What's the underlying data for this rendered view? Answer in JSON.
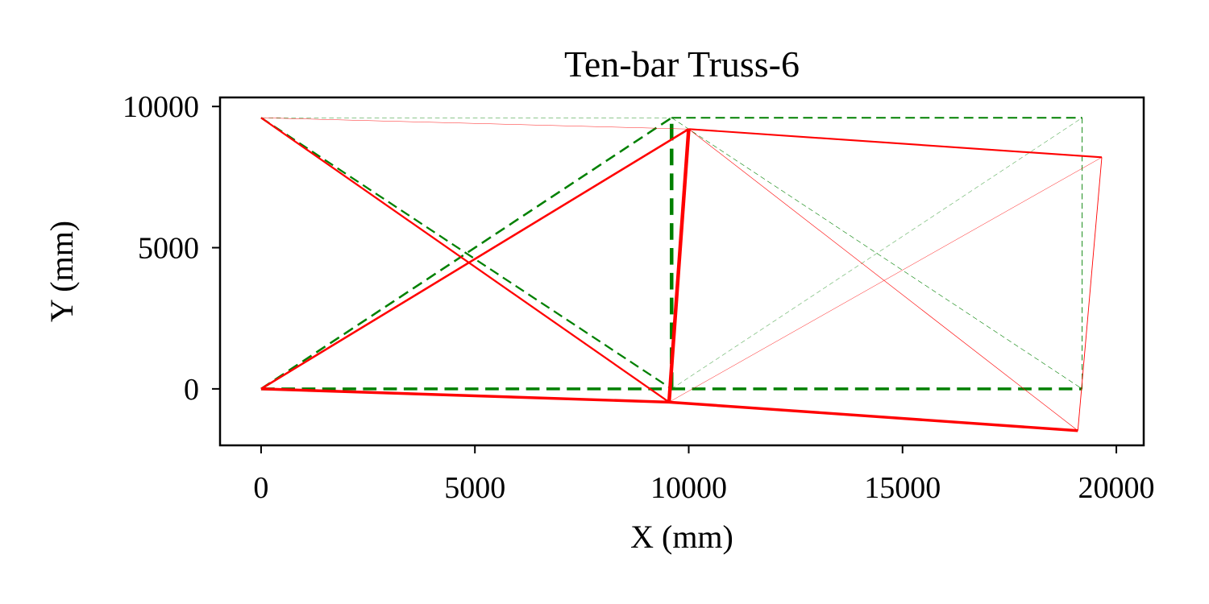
{
  "chart_data": {
    "type": "line",
    "title": "Ten-bar Truss-6",
    "xlabel": "X (mm)",
    "ylabel": "Y (mm)",
    "xlim": [
      -960,
      20640
    ],
    "ylim": [
      -2000,
      10320
    ],
    "xticks": [
      0,
      5000,
      10000,
      15000,
      20000
    ],
    "yticks": [
      0,
      5000,
      10000
    ],
    "xtick_labels": [
      "0",
      "5000",
      "10000",
      "15000",
      "20000"
    ],
    "ytick_labels": [
      "0",
      "5000",
      "10000"
    ],
    "grid": false,
    "legend": "none",
    "series": [
      {
        "style": "dashed",
        "color": "#008000",
        "nodes": [
          [
            0,
            0
          ],
          [
            0,
            9600
          ],
          [
            9600,
            0
          ],
          [
            9600,
            9600
          ],
          [
            19200,
            0
          ],
          [
            19200,
            9600
          ]
        ],
        "members": [
          {
            "from": 0,
            "to": 2,
            "weight": 2.3
          },
          {
            "from": 2,
            "to": 4,
            "weight": 2.3
          },
          {
            "from": 1,
            "to": 3,
            "weight": 0.3
          },
          {
            "from": 3,
            "to": 5,
            "weight": 1.4
          },
          {
            "from": 4,
            "to": 5,
            "weight": 0.6
          },
          {
            "from": 0,
            "to": 3,
            "weight": 1.7
          },
          {
            "from": 1,
            "to": 2,
            "weight": 1.5
          },
          {
            "from": 2,
            "to": 5,
            "weight": 0.3
          },
          {
            "from": 3,
            "to": 4,
            "weight": 0.4
          },
          {
            "from": 2,
            "to": 3,
            "weight": 3.0
          }
        ]
      },
      {
        "style": "solid",
        "color": "#ff0000",
        "nodes": [
          [
            0,
            0
          ],
          [
            0,
            9600
          ],
          [
            9540,
            -470
          ],
          [
            10000,
            9200
          ],
          [
            19100,
            -1480
          ],
          [
            19660,
            8200
          ]
        ],
        "members": [
          {
            "from": 0,
            "to": 2,
            "weight": 2.3
          },
          {
            "from": 2,
            "to": 4,
            "weight": 2.3
          },
          {
            "from": 1,
            "to": 3,
            "weight": 0.3
          },
          {
            "from": 3,
            "to": 5,
            "weight": 1.4
          },
          {
            "from": 4,
            "to": 5,
            "weight": 0.6
          },
          {
            "from": 0,
            "to": 3,
            "weight": 1.7
          },
          {
            "from": 1,
            "to": 2,
            "weight": 1.5
          },
          {
            "from": 2,
            "to": 5,
            "weight": 0.3
          },
          {
            "from": 3,
            "to": 4,
            "weight": 0.4
          },
          {
            "from": 2,
            "to": 3,
            "weight": 3.0
          }
        ]
      }
    ]
  }
}
